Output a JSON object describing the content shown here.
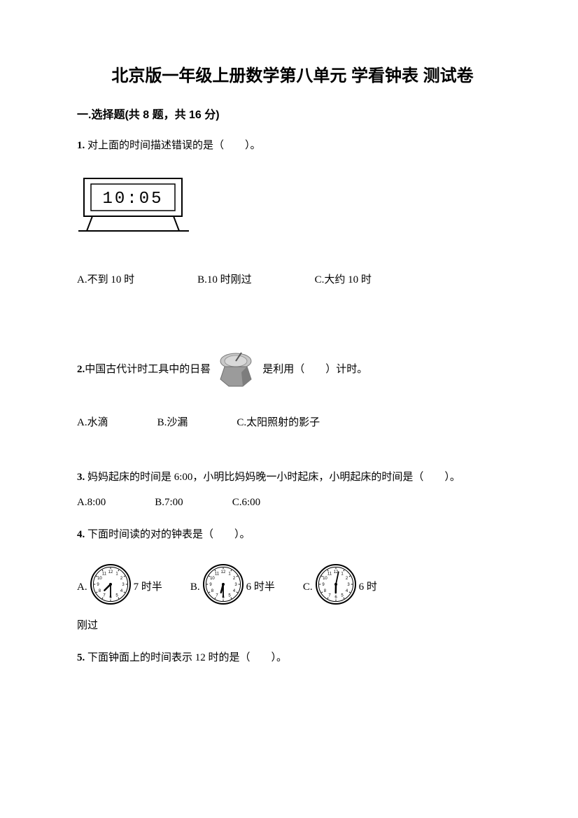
{
  "title": "北京版一年级上册数学第八单元 学看钟表 测试卷",
  "section": "一.选择题(共 8 题，共 16 分)",
  "q1": {
    "num": "1.",
    "text": "对上面的时间描述错误的是（　　）。",
    "clock_display": "10:05",
    "options": {
      "A": "A.不到 10 时",
      "B": "B.10 时刚过",
      "C": "C.大约 10 时"
    }
  },
  "q2": {
    "num": "2.",
    "text_before": "中国古代计时工具中的日晷",
    "text_after": "是利用（　　）计时。",
    "options": {
      "A": "A.水滴",
      "B": "B.沙漏",
      "C": "C.太阳照射的影子"
    }
  },
  "q3": {
    "num": "3.",
    "text": "妈妈起床的时间是 6:00，小明比妈妈晚一小时起床，小明起床的时间是（　　）。",
    "options": {
      "A": "A.8:00",
      "B": "B.7:00",
      "C": "C.6:00"
    }
  },
  "q4": {
    "num": "4.",
    "text": "下面时间读的对的钟表是（　　）。",
    "options": {
      "A": {
        "label": "A.",
        "desc": "7 时半",
        "hour": 7,
        "minute": 30
      },
      "B": {
        "label": "B.",
        "desc": "6 时半",
        "hour": 6,
        "minute": 30
      },
      "C": {
        "label": "C.",
        "desc": "6 时",
        "hour": 6,
        "minute": 2
      }
    },
    "trailing": "刚过"
  },
  "q5": {
    "num": "5.",
    "text": "下面钟面上的时间表示 12 时的是（　　）。"
  },
  "colors": {
    "text": "#000000",
    "bg": "#ffffff",
    "clock_stroke": "#000000",
    "sundial_fill": "#9b9b9b",
    "sundial_shadow": "#6e6e6e"
  },
  "clock_style": {
    "diameter": 58,
    "stroke_width": 2,
    "tick_count": 12
  }
}
